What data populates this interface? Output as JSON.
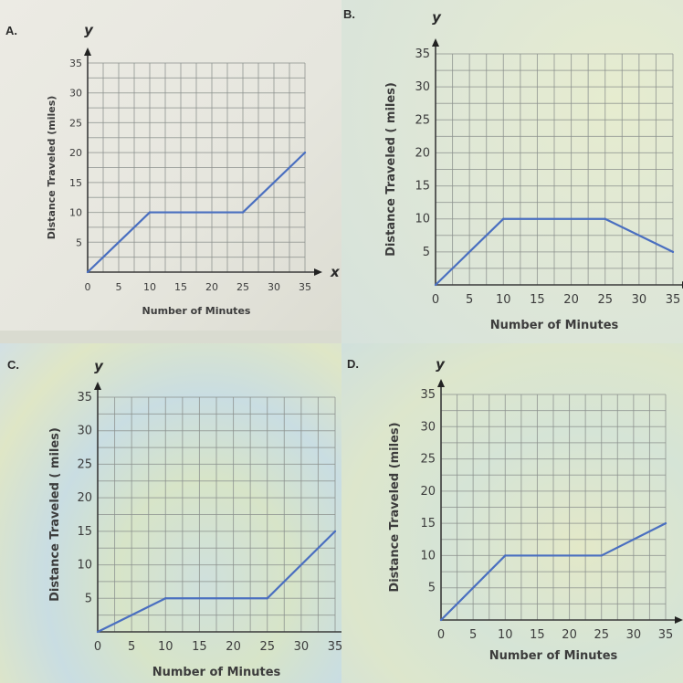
{
  "colors": {
    "line": "#4a6fc0",
    "grid": "#8a8f8c",
    "axis": "#3a3a3a",
    "text": "#3c3c3c"
  },
  "chart_data": [
    {
      "type": "line",
      "panel_label": "A.",
      "ylabel": "Distance Traveled (miles)",
      "xlabel": "Number of Minutes",
      "y_axis_name": "y",
      "x_axis_name": "x",
      "xlim": [
        0,
        35
      ],
      "ylim": [
        0,
        35
      ],
      "grid": true,
      "x_ticks": [
        "0",
        "5",
        "10",
        "15",
        "20",
        "25",
        "30",
        "35"
      ],
      "y_ticks": [
        "5",
        "10",
        "15",
        "20",
        "25",
        "30",
        "35"
      ],
      "x": [
        0,
        10,
        25,
        35
      ],
      "y": [
        0,
        10,
        10,
        20
      ]
    },
    {
      "type": "line",
      "panel_label": "B.",
      "ylabel": "Distance Traveled ( miles)",
      "xlabel": "Number of Minutes",
      "y_axis_name": "y",
      "xlim": [
        0,
        35
      ],
      "ylim": [
        0,
        35
      ],
      "grid": true,
      "x_ticks": [
        "0",
        "5",
        "10",
        "15",
        "20",
        "25",
        "30",
        "35"
      ],
      "y_ticks": [
        "5",
        "10",
        "15",
        "20",
        "25",
        "30",
        "35"
      ],
      "x": [
        0,
        10,
        25,
        35
      ],
      "y": [
        0,
        10,
        10,
        5
      ]
    },
    {
      "type": "line",
      "panel_label": "C.",
      "ylabel": "Distance Traveled ( miles)",
      "xlabel": "Number of Minutes",
      "y_axis_name": "y",
      "xlim": [
        0,
        35
      ],
      "ylim": [
        0,
        35
      ],
      "grid": true,
      "x_ticks": [
        "0",
        "5",
        "10",
        "15",
        "20",
        "25",
        "30",
        "35"
      ],
      "y_ticks": [
        "5",
        "10",
        "15",
        "20",
        "25",
        "30",
        "35"
      ],
      "x": [
        0,
        10,
        25,
        35
      ],
      "y": [
        0,
        5,
        5,
        15
      ]
    },
    {
      "type": "line",
      "panel_label": "D.",
      "ylabel": "Distance Traveled (miles)",
      "xlabel": "Number of Minutes",
      "y_axis_name": "y",
      "xlim": [
        0,
        35
      ],
      "ylim": [
        0,
        35
      ],
      "grid": true,
      "x_ticks": [
        "0",
        "5",
        "10",
        "15",
        "20",
        "25",
        "30",
        "35"
      ],
      "y_ticks": [
        "5",
        "10",
        "15",
        "20",
        "25",
        "30",
        "35"
      ],
      "x": [
        0,
        10,
        25,
        35
      ],
      "y": [
        0,
        10,
        10,
        15
      ]
    }
  ]
}
